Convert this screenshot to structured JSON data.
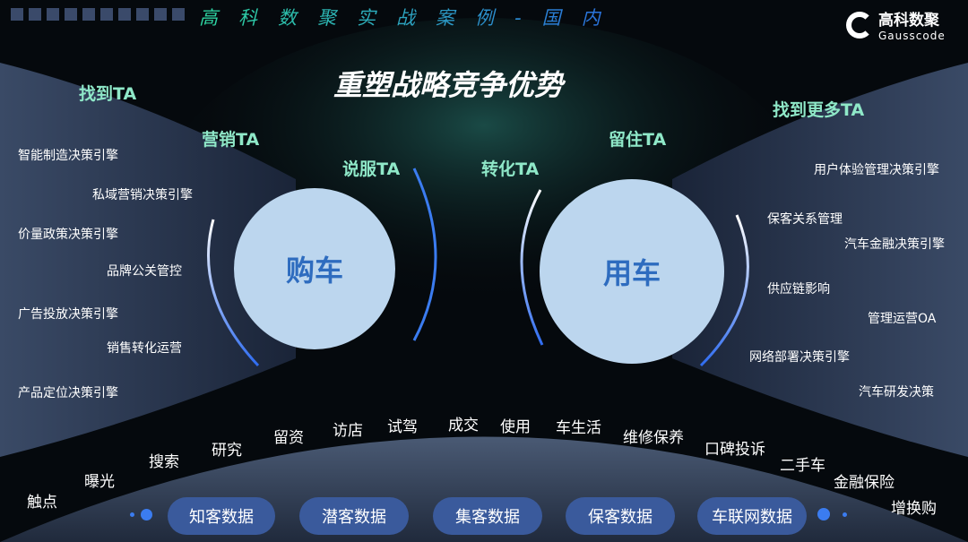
{
  "header": {
    "series_title": "高科数聚实战案例-国内",
    "logo_cn": "高科数聚",
    "logo_en": "Gausscode"
  },
  "title": "重塑战略竞争优势",
  "ta_labels": {
    "find": "找到TA",
    "market": "营销TA",
    "persuade": "说服TA",
    "convert": "转化TA",
    "retain": "留住TA",
    "find_more": "找到更多TA"
  },
  "circles": {
    "buy": "购车",
    "use": "用车"
  },
  "left_engines": [
    "智能制造决策引擎",
    "私域营销决策引擎",
    "价量政策决策引擎",
    "品牌公关管控",
    "广告投放决策引擎",
    "销售转化运营",
    "产品定位决策引擎"
  ],
  "right_engines": [
    "用户体验管理决策引擎",
    "保客关系管理",
    "汽车金融决策引擎",
    "供应链影响",
    "管理运营OA",
    "网络部署决策引擎",
    "汽车研发决策"
  ],
  "journey": [
    "触点",
    "曝光",
    "搜索",
    "研究",
    "留资",
    "访店",
    "试驾",
    "成交",
    "使用",
    "车生活",
    "维修保养",
    "口碑投诉",
    "二手车",
    "金融保险",
    "增换购"
  ],
  "data_pills": [
    "知客数据",
    "潜客数据",
    "集客数据",
    "保客数据",
    "车联网数据"
  ],
  "colors": {
    "ta": "#8fe8c8",
    "circle": "#bcd6ee",
    "circle_text": "#2e6cbf",
    "pill": "#3a5a9c",
    "arrow": "#3b7cf0"
  }
}
